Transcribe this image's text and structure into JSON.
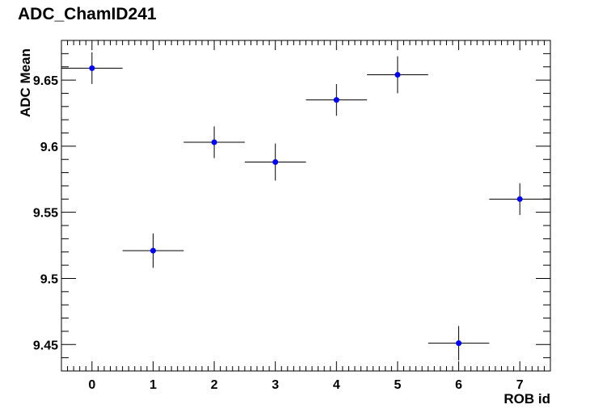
{
  "chart_data": {
    "type": "scatter",
    "title": "ADC_ChamID241",
    "xlabel": "ROB id",
    "ylabel": "ADC Mean",
    "xlim": [
      -0.5,
      7.5
    ],
    "ylim": [
      9.43,
      9.68
    ],
    "x_ticks": [
      0,
      1,
      2,
      3,
      4,
      5,
      6,
      7
    ],
    "y_ticks": [
      9.45,
      9.5,
      9.55,
      9.6,
      9.65
    ],
    "y_tick_labels": [
      "9.45",
      "9.5",
      "9.55",
      "9.6",
      "9.65"
    ],
    "grid": false,
    "marker_color": "#0000ff",
    "points": [
      {
        "x": 0,
        "y": 9.659,
        "xerr": 0.5,
        "yerr": 0.012
      },
      {
        "x": 1,
        "y": 9.521,
        "xerr": 0.5,
        "yerr": 0.013
      },
      {
        "x": 2,
        "y": 9.603,
        "xerr": 0.5,
        "yerr": 0.012
      },
      {
        "x": 3,
        "y": 9.588,
        "xerr": 0.5,
        "yerr": 0.014
      },
      {
        "x": 4,
        "y": 9.635,
        "xerr": 0.5,
        "yerr": 0.012
      },
      {
        "x": 5,
        "y": 9.654,
        "xerr": 0.5,
        "yerr": 0.014
      },
      {
        "x": 6,
        "y": 9.451,
        "xerr": 0.5,
        "yerr": 0.013
      },
      {
        "x": 7,
        "y": 9.56,
        "xerr": 0.5,
        "yerr": 0.012
      }
    ]
  }
}
